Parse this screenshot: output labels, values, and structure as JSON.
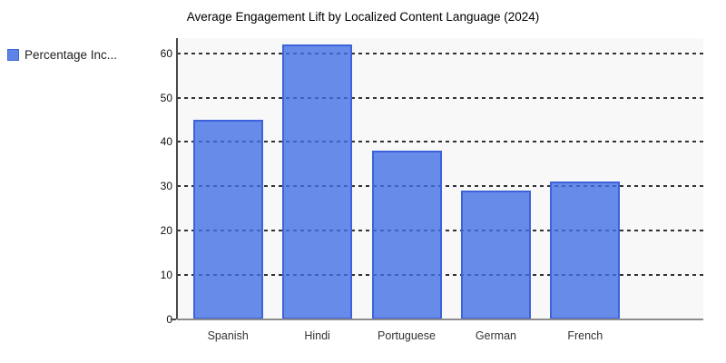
{
  "chart_data": {
    "type": "bar",
    "title": "Average Engagement Lift by Localized Content Language (2024)",
    "categories": [
      "Spanish",
      "Hindi",
      "Portuguese",
      "German",
      "French"
    ],
    "series": [
      {
        "name": "Percentage Inc...",
        "values": [
          45,
          62,
          38,
          29,
          31
        ]
      }
    ],
    "xlabel": "",
    "ylabel": "",
    "ylim": [
      0,
      63.4
    ],
    "yticks": [
      0,
      10,
      20,
      30,
      40,
      50,
      60
    ],
    "grid": "horizontal-dashed",
    "legend_position": "top-left",
    "colors": {
      "bar_fill": "#618be9",
      "bar_border": "#3d63da",
      "plot_background": "#f8f8f8",
      "gridline": "#333333",
      "axis": "#8c8c8c"
    }
  }
}
